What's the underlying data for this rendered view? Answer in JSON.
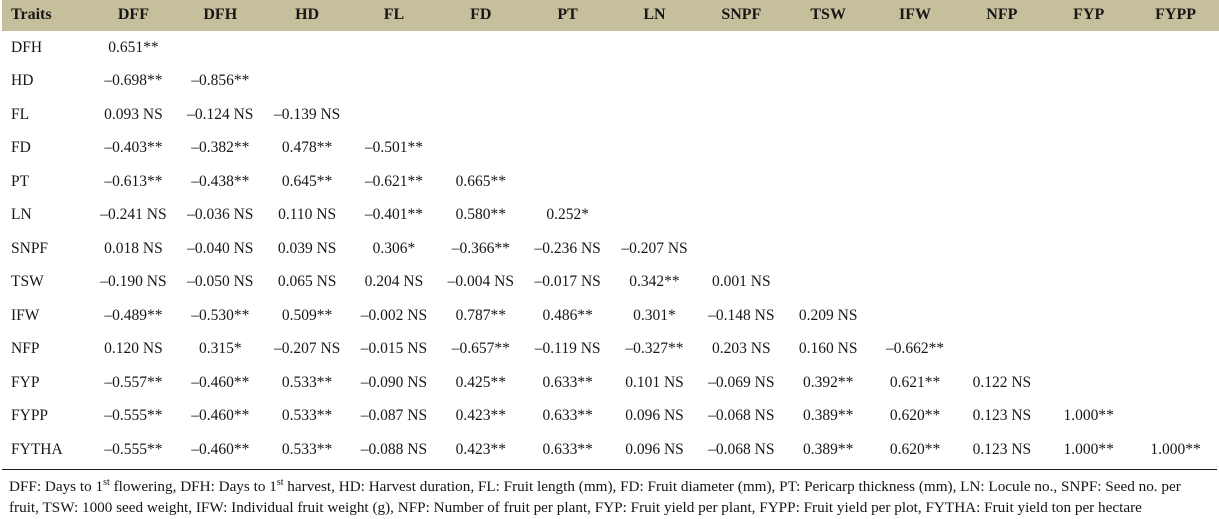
{
  "colors": {
    "header_background": "#c5bf9b",
    "body_background": "#ffffff",
    "text": "#171717",
    "rule_line": "#1a1a1a"
  },
  "table": {
    "header": [
      "Traits",
      "DFF",
      "DFH",
      "HD",
      "FL",
      "FD",
      "PT",
      "LN",
      "SNPF",
      "TSW",
      "IFW",
      "NFP",
      "FYP",
      "FYPP"
    ],
    "rows": [
      {
        "trait": "DFH",
        "values": [
          "0.651**"
        ]
      },
      {
        "trait": "HD",
        "values": [
          "–0.698**",
          "–0.856**"
        ]
      },
      {
        "trait": "FL",
        "values": [
          "0.093 NS",
          "–0.124 NS",
          "–0.139 NS"
        ]
      },
      {
        "trait": "FD",
        "values": [
          "–0.403**",
          "–0.382**",
          "0.478**",
          "–0.501**"
        ]
      },
      {
        "trait": "PT",
        "values": [
          "–0.613**",
          "–0.438**",
          "0.645**",
          "–0.621**",
          "0.665**"
        ]
      },
      {
        "trait": "LN",
        "values": [
          "–0.241 NS",
          "–0.036 NS",
          "0.110 NS",
          "–0.401**",
          "0.580**",
          "0.252*"
        ]
      },
      {
        "trait": "SNPF",
        "values": [
          "0.018 NS",
          "–0.040 NS",
          "0.039 NS",
          "0.306*",
          "–0.366**",
          "–0.236 NS",
          "–0.207 NS"
        ]
      },
      {
        "trait": "TSW",
        "values": [
          "–0.190 NS",
          "–0.050 NS",
          "0.065 NS",
          "0.204 NS",
          "–0.004 NS",
          "–0.017 NS",
          "0.342**",
          "0.001 NS"
        ]
      },
      {
        "trait": "IFW",
        "values": [
          "–0.489**",
          "–0.530**",
          "0.509**",
          "–0.002 NS",
          "0.787**",
          "0.486**",
          "0.301*",
          "–0.148 NS",
          "0.209 NS"
        ]
      },
      {
        "trait": "NFP",
        "values": [
          "0.120 NS",
          "0.315*",
          "–0.207 NS",
          "–0.015 NS",
          "–0.657**",
          "–0.119 NS",
          "–0.327**",
          "0.203 NS",
          "0.160 NS",
          "–0.662**"
        ]
      },
      {
        "trait": "FYP",
        "values": [
          "–0.557**",
          "–0.460**",
          "0.533**",
          "–0.090 NS",
          "0.425**",
          "0.633**",
          "0.101 NS",
          "–0.069 NS",
          "0.392**",
          "0.621**",
          "0.122 NS"
        ]
      },
      {
        "trait": "FYPP",
        "values": [
          "–0.555**",
          "–0.460**",
          "0.533**",
          "–0.087 NS",
          "0.423**",
          "0.633**",
          "0.096 NS",
          "–0.068 NS",
          "0.389**",
          "0.620**",
          "0.123 NS",
          "1.000**"
        ]
      },
      {
        "trait": "FYTHA",
        "values": [
          "–0.555**",
          "–0.460**",
          "0.533**",
          "–0.088 NS",
          "0.423**",
          "0.633**",
          "0.096 NS",
          "–0.068 NS",
          "0.389**",
          "0.620**",
          "0.123 NS",
          "1.000**",
          "1.000**"
        ]
      }
    ]
  },
  "footnote": {
    "parts": [
      {
        "text": "DFF: Days to 1"
      },
      {
        "sup": "st"
      },
      {
        "text": " flowering, DFH: Days to 1"
      },
      {
        "sup": "st"
      },
      {
        "text": " harvest, HD: Harvest duration, FL: Fruit length (mm), FD: Fruit diameter (mm), PT: Pericarp thickness (mm), LN: Locule no., SNPF: Seed no. per fruit, TSW: 1000 seed weight, IFW: Individual fruit weight (g), NFP: Number of fruit per plant, FYP: Fruit yield per plant, FYPP: Fruit yield per plot, FYTHA: Fruit yield ton per hectare"
      }
    ]
  }
}
